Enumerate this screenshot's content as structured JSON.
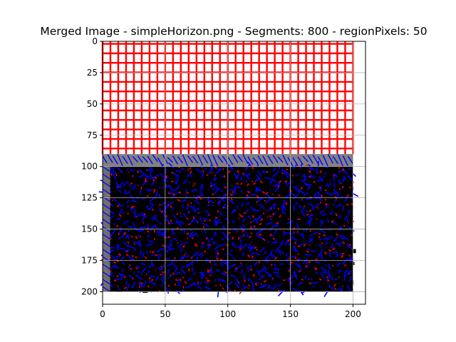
{
  "chart_data": {
    "type": "heatmap",
    "title": "Merged Image - simpleHorizon.png - Segments: 800 - regionPixels: 50",
    "xlabel": "",
    "ylabel": "",
    "xlim": [
      0,
      210
    ],
    "ylim": [
      210,
      0
    ],
    "image_extent": [
      0,
      200,
      0,
      200
    ],
    "x_ticks": [
      0,
      50,
      100,
      150,
      200
    ],
    "x_tick_labels": [
      "0",
      "50",
      "100",
      "150",
      "200"
    ],
    "y_ticks": [
      0,
      25,
      50,
      75,
      100,
      125,
      150,
      175,
      200
    ],
    "y_tick_labels": [
      "0",
      "25",
      "50",
      "75",
      "100",
      "125",
      "150",
      "175",
      "200"
    ],
    "grid": true,
    "horizon_row": 97,
    "regions": [
      {
        "name": "sky",
        "rows": [
          0,
          90
        ],
        "fill": "#ffffff",
        "segment_color": "#ff0000"
      },
      {
        "name": "transition",
        "rows": [
          90,
          100
        ],
        "fill": "#808080",
        "segment_color": "#0000ff"
      },
      {
        "name": "ground",
        "rows": [
          100,
          200
        ],
        "fill": "#000000",
        "segment_colors": [
          "#0000ff",
          "#ff0000"
        ]
      }
    ],
    "colors": {
      "red": "#ff0000",
      "blue": "#0000ff",
      "gray": "#808080",
      "black": "#000000",
      "grid": "#b0b0b0"
    }
  }
}
